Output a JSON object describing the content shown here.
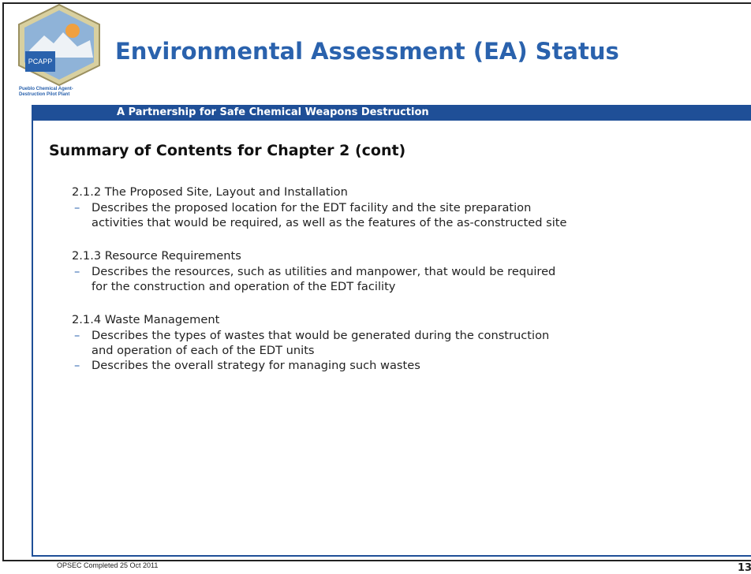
{
  "logo": {
    "name": "PCAPP",
    "caption": [
      "Pueblo Chemical Agent-",
      "Destruction Pilot Plant"
    ]
  },
  "header": {
    "title": "Environmental Assessment (EA) Status",
    "tagline": "A Partnership for Safe Chemical Weapons Destruction"
  },
  "content": {
    "heading": "Summary of Contents for Chapter 2 (cont)",
    "sections": [
      {
        "title": "2.1.2 The Proposed Site, Layout and Installation",
        "bullets": [
          [
            "Describes the proposed location for the EDT facility and the site preparation",
            "activities that would be required, as well as the features of the as-constructed site"
          ]
        ]
      },
      {
        "title": "2.1.3 Resource Requirements",
        "bullets": [
          [
            "Describes the resources, such as utilities and manpower, that would be required",
            "for the construction and operation of the EDT facility"
          ]
        ]
      },
      {
        "title": "2.1.4 Waste Management",
        "bullets": [
          [
            "Describes the types of wastes that would be generated during the construction",
            "and operation of each of the EDT units"
          ],
          [
            "Describes the overall strategy for managing such wastes"
          ]
        ]
      }
    ]
  },
  "footer": {
    "note": "OPSEC Completed 25 Oct 2011",
    "page_number": "13"
  }
}
